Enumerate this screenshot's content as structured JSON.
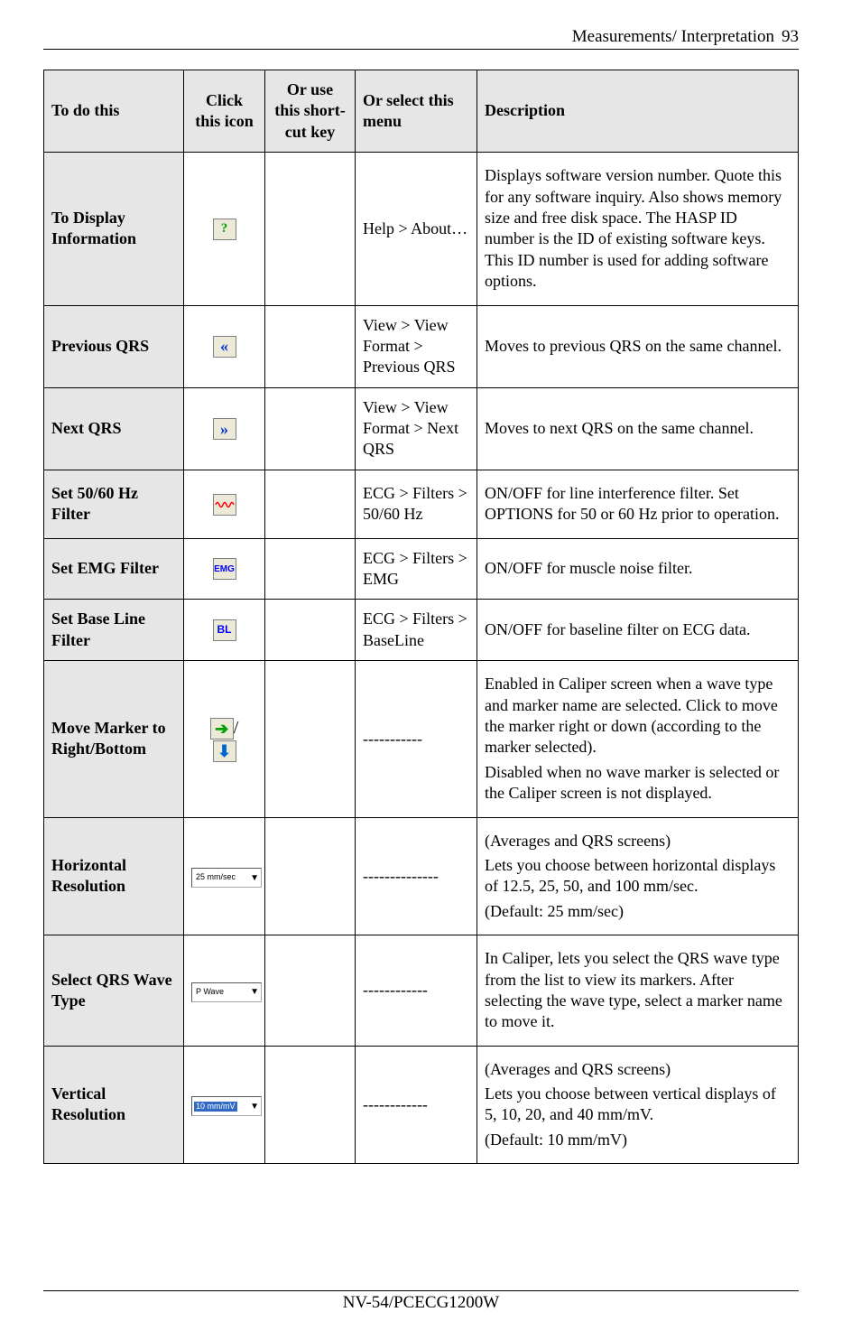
{
  "page": {
    "header_title": "Measurements/ Interpretation",
    "header_page": "93",
    "footer": "NV-54/PCECG1200W"
  },
  "columns": {
    "c1": "To do this",
    "c2": "Click this icon",
    "c3": "Or use this short-cut key",
    "c4": "Or select this menu",
    "c5": "Description"
  },
  "rows": [
    {
      "task": "To Display Information",
      "icon": {
        "type": "glyph",
        "glyph": "?",
        "color": "#00a000",
        "bold": true
      },
      "shortcut": "",
      "menu": "Help > About…",
      "desc": [
        "Displays software version number. Quote this for any software inquiry. Also shows memory size and free disk space. The HASP ID number is the ID of existing software keys. This ID number is used for adding software options."
      ]
    },
    {
      "task": "Previous QRS",
      "icon": {
        "type": "glyph",
        "glyph": "«",
        "color": "#0033cc",
        "bold": true,
        "size": 18
      },
      "shortcut": "",
      "menu": "View > View Format > Previous QRS",
      "desc": [
        "Moves to previous QRS on the same channel."
      ]
    },
    {
      "task": "Next QRS",
      "icon": {
        "type": "glyph",
        "glyph": "»",
        "color": "#0033cc",
        "bold": true,
        "size": 18
      },
      "shortcut": "",
      "menu": "View > View Format > Next QRS",
      "desc": [
        "Moves to next QRS on the same channel."
      ]
    },
    {
      "task": "Set 50/60 Hz Filter",
      "icon": {
        "type": "wave",
        "color": "#ff0000"
      },
      "shortcut": "",
      "menu": "ECG > Filters > 50/60 Hz",
      "desc": [
        "ON/OFF for line interference filter. Set OPTIONS for 50 or 60 Hz prior to operation."
      ]
    },
    {
      "task": "Set EMG Filter",
      "icon": {
        "type": "text",
        "text": "EMG",
        "color": "#0000ff",
        "size": 10
      },
      "shortcut": "",
      "menu": "ECG > Filters > EMG",
      "desc": [
        "ON/OFF for muscle noise filter."
      ]
    },
    {
      "task": "Set Base Line Filter",
      "icon": {
        "type": "text",
        "text": "BL",
        "color": "#0000ff",
        "size": 12
      },
      "shortcut": "",
      "menu": "ECG > Filters > BaseLine",
      "desc": [
        "ON/OFF for baseline filter on ECG data."
      ]
    },
    {
      "task": "Move Marker to Right/Bottom",
      "icon": {
        "type": "arrows",
        "right_color": "#00a000",
        "down_color": "#0066cc",
        "sep": "/"
      },
      "shortcut": "",
      "menu": "-----------",
      "desc": [
        "Enabled in Caliper screen when a wave type and marker name are selected. Click to move the marker right or down (according to the marker selected).",
        "Disabled when no wave marker is selected or the Caliper screen is not displayed."
      ]
    },
    {
      "task": "Horizontal Resolution",
      "icon": {
        "type": "dropdown",
        "label": "25 mm/sec"
      },
      "shortcut": "",
      "menu": "--------------",
      "desc": [
        "(Averages and QRS screens)",
        "Lets you choose between horizontal displays of 12.5, 25, 50, and 100 mm/sec.",
        "(Default: 25 mm/sec)"
      ]
    },
    {
      "task": "Select QRS Wave Type",
      "icon": {
        "type": "dropdown",
        "label": "P Wave"
      },
      "shortcut": "",
      "menu": "------------",
      "desc": [
        "In Caliper, lets you select the QRS wave type from the list to view its markers. After selecting the wave type, select a marker name to move it."
      ]
    },
    {
      "task": "Vertical Resolution",
      "icon": {
        "type": "dropdown",
        "label": "10 mm/mV",
        "selected": true
      },
      "shortcut": "",
      "menu": "------------",
      "desc": [
        "(Averages and QRS screens)",
        "Lets you choose between vertical displays of 5, 10, 20, and 40 mm/mV.",
        "(Default: 10 mm/mV)"
      ]
    }
  ]
}
